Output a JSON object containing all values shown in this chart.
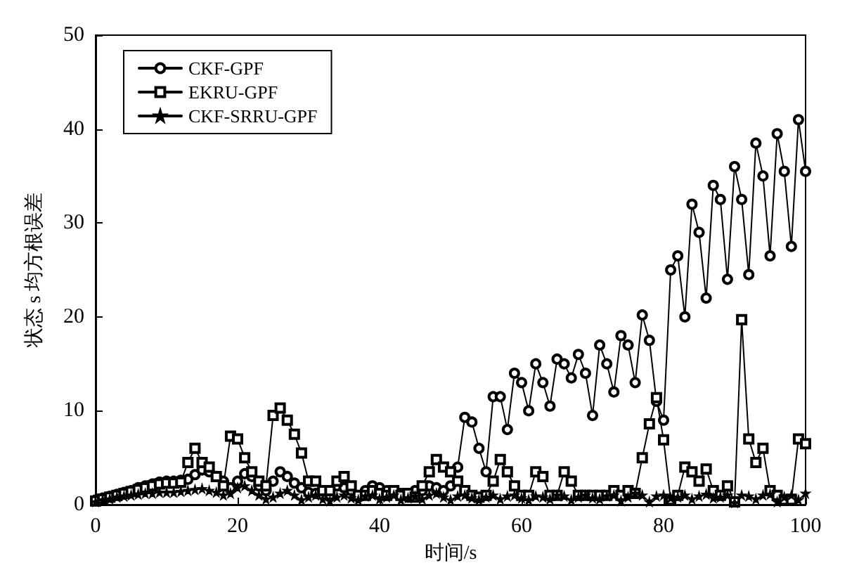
{
  "chart_data": {
    "type": "line",
    "xlabel": "时间/s",
    "ylabel": "状态 s 均方根误差",
    "xlim": [
      0,
      100
    ],
    "xticks": [
      0,
      20,
      40,
      60,
      80,
      100
    ],
    "ylim": [
      0,
      50
    ],
    "yticks": [
      0,
      10,
      20,
      30,
      40,
      50
    ],
    "grid": false,
    "legend": "top left",
    "line_style": "solid",
    "x": [
      0,
      1,
      2,
      3,
      4,
      5,
      6,
      7,
      8,
      9,
      10,
      11,
      12,
      13,
      14,
      15,
      16,
      17,
      18,
      19,
      20,
      21,
      22,
      23,
      24,
      25,
      26,
      27,
      28,
      29,
      30,
      31,
      32,
      33,
      34,
      35,
      36,
      37,
      38,
      39,
      40,
      41,
      42,
      43,
      44,
      45,
      46,
      47,
      48,
      49,
      50,
      51,
      52,
      53,
      54,
      55,
      56,
      57,
      58,
      59,
      60,
      61,
      62,
      63,
      64,
      65,
      66,
      67,
      68,
      69,
      70,
      71,
      72,
      73,
      74,
      75,
      76,
      77,
      78,
      79,
      80,
      81,
      82,
      83,
      84,
      85,
      86,
      87,
      88,
      89,
      90,
      91,
      92,
      93,
      94,
      95,
      96,
      97,
      98,
      99,
      100
    ],
    "series": [
      {
        "name": "CKF-GPF",
        "color": "#000000",
        "marker": "circle",
        "values": [
          0.5,
          0.7,
          0.9,
          1.1,
          1.3,
          1.5,
          1.8,
          2.0,
          2.2,
          2.4,
          2.5,
          2.5,
          2.6,
          2.7,
          3.2,
          3.7,
          3.5,
          3.0,
          2.5,
          1.8,
          2.5,
          3.3,
          3.0,
          2.0,
          1.5,
          2.5,
          3.5,
          3.0,
          2.3,
          1.8,
          1.3,
          1.2,
          1.5,
          1.0,
          2.0,
          1.8,
          1.5,
          0.8,
          1.5,
          2.0,
          1.8,
          1.5,
          1.5,
          1.2,
          0.8,
          1.5,
          1.5,
          2.0,
          1.8,
          1.5,
          2.0,
          4,
          9.3,
          8.8,
          6,
          3.5,
          11.5,
          11.5,
          8,
          14,
          13,
          10,
          15,
          13,
          10.5,
          15.5,
          15,
          13.5,
          16,
          14,
          9.5,
          17,
          15,
          12,
          18,
          17,
          13,
          20.2,
          17.5,
          11,
          9,
          25,
          26.5,
          20,
          32,
          29,
          22,
          34,
          32.5,
          24,
          36,
          32.5,
          24.5,
          38.5,
          35,
          26.5,
          39.5,
          35.5,
          27.5,
          41,
          35.5
        ]
      },
      {
        "name": "EKRU-GPF",
        "color": "#000000",
        "marker": "square",
        "values": [
          0.4,
          0.6,
          0.8,
          1.0,
          1.2,
          1.4,
          1.6,
          1.8,
          2.0,
          2.2,
          2.3,
          2.3,
          2.4,
          4.5,
          6,
          4.5,
          4,
          3,
          2,
          7.3,
          7,
          5,
          3.5,
          2.5,
          2,
          9.5,
          10.3,
          9,
          7.5,
          5.5,
          2.5,
          2.5,
          1.5,
          1.5,
          2.5,
          3,
          2,
          1,
          1,
          1.5,
          1.2,
          1,
          1.5,
          1,
          1.2,
          0.8,
          2,
          3.5,
          4.8,
          4,
          3.5,
          2.5,
          1.5,
          1,
          0.8,
          1,
          2.5,
          4.8,
          3.5,
          2,
          1,
          1,
          3.5,
          3,
          1,
          1,
          3.5,
          2.5,
          1,
          1,
          1,
          1,
          1,
          1.5,
          1,
          1.5,
          1.2,
          5,
          8.6,
          11.4,
          6.9,
          0.5,
          1,
          4,
          3.5,
          2.5,
          3.8,
          1.5,
          1,
          2,
          0.3,
          19.7,
          7,
          4.5,
          6,
          1.5,
          1,
          0.5,
          0.5,
          7,
          6.5
        ]
      },
      {
        "name": "CKF-SRRU-GPF",
        "color": "#000000",
        "marker": "star",
        "values": [
          0.3,
          0.5,
          0.6,
          0.8,
          0.9,
          1.0,
          1.1,
          1.2,
          1.2,
          1.3,
          1.3,
          1.3,
          1.4,
          1.5,
          1.6,
          1.7,
          1.5,
          1.3,
          1.0,
          1.2,
          1.8,
          2.0,
          1.5,
          1.0,
          0.6,
          0.8,
          1.2,
          1.5,
          1.0,
          0.5,
          0.8,
          1.0,
          0.6,
          0.4,
          0.8,
          1.0,
          0.7,
          0.5,
          0.9,
          1.0,
          0.6,
          0.8,
          1.0,
          0.5,
          0.7,
          0.9,
          0.6,
          1.0,
          1.2,
          0.8,
          0.5,
          0.9,
          1.0,
          0.7,
          0.5,
          0.8,
          1.0,
          0.6,
          0.9,
          1.0,
          0.7,
          0.5,
          0.9,
          0.8,
          0.6,
          1.0,
          0.9,
          0.5,
          0.8,
          1.0,
          0.7,
          0.6,
          0.9,
          1.0,
          0.4,
          0.8,
          1.2,
          1.0,
          0.3,
          0.9,
          1.0,
          0.7,
          0.8,
          1.0,
          0.6,
          0.9,
          1.1,
          0.7,
          0.8,
          1.0,
          0.2,
          1.0,
          0.9,
          0.6,
          1.0,
          1.1,
          0.3,
          0.8,
          1.0,
          0.5,
          1.2
        ]
      }
    ]
  }
}
